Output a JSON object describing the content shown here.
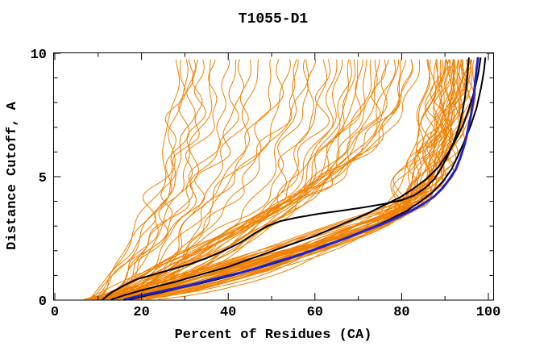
{
  "window": {
    "title": "T1055-D1"
  },
  "chart_data": {
    "type": "line",
    "title": "T1055-D1",
    "xlabel": "Percent of Residues (CA)",
    "ylabel": "Distance Cutoff, A",
    "xlim": [
      0,
      100
    ],
    "ylim": [
      0,
      10
    ],
    "x_tick_step_minor": 10,
    "x_major_ticks": [
      0,
      20,
      40,
      60,
      80,
      100
    ],
    "y_tick_step_minor": 1,
    "y_major_ticks": [
      0,
      5,
      10
    ],
    "grid": false,
    "legend": "none",
    "ticks_inward_mirrored": true,
    "colors": {
      "background": "#FFFFFF",
      "frame": "#000000",
      "text": "#000000",
      "ensemble": "#F08000",
      "reference_black": "#000000",
      "highlight_blue": "#2222CC"
    },
    "highlight_series": [
      {
        "name": "model-black-upper",
        "color": "#000000",
        "width": 2,
        "points": [
          [
            11,
            0.02
          ],
          [
            13,
            0.3
          ],
          [
            16,
            0.6
          ],
          [
            19,
            0.85
          ],
          [
            23,
            1.05
          ],
          [
            27,
            1.25
          ],
          [
            31,
            1.45
          ],
          [
            35,
            1.7
          ],
          [
            39,
            2.0
          ],
          [
            43,
            2.35
          ],
          [
            46,
            2.7
          ],
          [
            49,
            3.0
          ],
          [
            52,
            3.2
          ],
          [
            56,
            3.35
          ],
          [
            61,
            3.5
          ],
          [
            66,
            3.62
          ],
          [
            71,
            3.75
          ],
          [
            76,
            3.9
          ],
          [
            80,
            4.05
          ],
          [
            83,
            4.25
          ],
          [
            85.5,
            4.55
          ],
          [
            87.5,
            4.9
          ],
          [
            89,
            5.3
          ],
          [
            90.5,
            5.8
          ],
          [
            92,
            6.4
          ],
          [
            93.2,
            7.0
          ],
          [
            94,
            7.6
          ],
          [
            94.6,
            8.2
          ],
          [
            95,
            8.8
          ],
          [
            95.3,
            9.4
          ],
          [
            95.5,
            9.8
          ]
        ]
      },
      {
        "name": "model-black-mid",
        "color": "#000000",
        "width": 2,
        "points": [
          [
            13,
            0.02
          ],
          [
            16,
            0.2
          ],
          [
            20,
            0.4
          ],
          [
            24,
            0.58
          ],
          [
            28,
            0.75
          ],
          [
            32,
            0.95
          ],
          [
            36,
            1.15
          ],
          [
            40,
            1.35
          ],
          [
            44,
            1.6
          ],
          [
            48,
            1.85
          ],
          [
            52,
            2.1
          ],
          [
            56,
            2.35
          ],
          [
            60,
            2.6
          ],
          [
            64,
            2.9
          ],
          [
            68,
            3.2
          ],
          [
            72,
            3.5
          ],
          [
            76,
            3.85
          ],
          [
            80,
            4.2
          ],
          [
            83,
            4.55
          ],
          [
            86,
            4.95
          ],
          [
            88.5,
            5.4
          ],
          [
            90.5,
            5.9
          ],
          [
            92.5,
            6.5
          ],
          [
            94.2,
            7.1
          ],
          [
            95.6,
            7.8
          ],
          [
            96.8,
            8.5
          ],
          [
            97.7,
            9.2
          ],
          [
            98.2,
            9.8
          ]
        ]
      },
      {
        "name": "model-black-best",
        "color": "#000000",
        "width": 2,
        "points": [
          [
            17,
            0.02
          ],
          [
            21,
            0.18
          ],
          [
            25,
            0.33
          ],
          [
            29,
            0.5
          ],
          [
            33,
            0.65
          ],
          [
            37,
            0.82
          ],
          [
            41,
            1.0
          ],
          [
            45,
            1.2
          ],
          [
            49,
            1.4
          ],
          [
            53,
            1.62
          ],
          [
            57,
            1.85
          ],
          [
            61,
            2.1
          ],
          [
            65,
            2.35
          ],
          [
            69,
            2.62
          ],
          [
            73,
            2.92
          ],
          [
            77,
            3.25
          ],
          [
            81,
            3.6
          ],
          [
            84,
            3.95
          ],
          [
            87,
            4.35
          ],
          [
            89.5,
            4.8
          ],
          [
            91.5,
            5.3
          ],
          [
            93,
            5.85
          ],
          [
            94.5,
            6.45
          ],
          [
            96,
            7.1
          ],
          [
            97.3,
            7.8
          ],
          [
            98.3,
            8.6
          ],
          [
            99,
            9.3
          ],
          [
            99.3,
            9.8
          ]
        ]
      },
      {
        "name": "model-blue-highlight",
        "color": "#2222CC",
        "width": 3,
        "points": [
          [
            16,
            0.02
          ],
          [
            19,
            0.15
          ],
          [
            23,
            0.3
          ],
          [
            27,
            0.45
          ],
          [
            31,
            0.6
          ],
          [
            35,
            0.78
          ],
          [
            39,
            0.95
          ],
          [
            43,
            1.12
          ],
          [
            47,
            1.32
          ],
          [
            51,
            1.55
          ],
          [
            55,
            1.75
          ],
          [
            59,
            2.0
          ],
          [
            63,
            2.25
          ],
          [
            67,
            2.5
          ],
          [
            71,
            2.78
          ],
          [
            75,
            3.05
          ],
          [
            79,
            3.35
          ],
          [
            82,
            3.6
          ],
          [
            85,
            3.9
          ],
          [
            87.5,
            4.2
          ],
          [
            89.5,
            4.55
          ],
          [
            91,
            4.9
          ],
          [
            92.5,
            5.3
          ],
          [
            93.5,
            5.75
          ],
          [
            94.5,
            6.3
          ],
          [
            95.3,
            6.9
          ],
          [
            96,
            7.5
          ],
          [
            96.6,
            8.2
          ],
          [
            97,
            8.9
          ],
          [
            97.3,
            9.4
          ],
          [
            97.6,
            9.8
          ]
        ]
      }
    ],
    "ensemble_series": {
      "name": "server-models-orange",
      "color": "#F08000",
      "width": 1,
      "count": 84,
      "y_top": 9.85,
      "curve_params_format": [
        "x_at_y0",
        "x_at_knee",
        "y_knee",
        "x_at_top"
      ],
      "curves": [
        [
          6,
          78,
          3.2,
          90
        ],
        [
          8,
          82,
          3.6,
          93
        ],
        [
          10,
          85,
          4.0,
          95
        ],
        [
          12,
          75,
          3.0,
          88
        ],
        [
          7,
          88,
          4.5,
          96
        ],
        [
          14,
          80,
          3.4,
          92
        ],
        [
          9,
          84,
          3.8,
          94
        ],
        [
          16,
          77,
          3.1,
          89
        ],
        [
          11,
          86,
          4.2,
          95
        ],
        [
          13,
          79,
          3.3,
          91
        ],
        [
          5,
          83,
          3.7,
          93
        ],
        [
          15,
          87,
          4.4,
          96
        ],
        [
          8,
          76,
          3.0,
          87
        ],
        [
          10,
          81,
          3.5,
          92
        ],
        [
          17,
          85,
          4.1,
          94
        ],
        [
          12,
          89,
          4.8,
          97
        ],
        [
          6,
          74,
          2.9,
          86
        ],
        [
          9,
          80,
          3.4,
          91
        ],
        [
          14,
          84,
          3.9,
          94
        ],
        [
          18,
          78,
          3.2,
          90
        ],
        [
          7,
          86,
          4.3,
          95
        ],
        [
          11,
          82,
          3.6,
          92
        ],
        [
          15,
          88,
          4.6,
          96
        ],
        [
          13,
          76,
          3.0,
          88
        ],
        [
          5,
          80,
          3.5,
          90
        ],
        [
          16,
          84,
          4.0,
          93
        ],
        [
          9,
          78,
          3.2,
          89
        ],
        [
          12,
          86,
          4.2,
          94
        ],
        [
          19,
          81,
          3.5,
          91
        ],
        [
          7,
          84,
          3.9,
          93
        ],
        [
          10,
          88,
          4.7,
          96
        ],
        [
          14,
          75,
          3.0,
          86
        ],
        [
          17,
          82,
          3.7,
          92
        ],
        [
          6,
          79,
          3.3,
          90
        ],
        [
          11,
          85,
          4.1,
          94
        ],
        [
          20,
          83,
          3.8,
          92
        ],
        [
          8,
          87,
          4.5,
          95
        ],
        [
          13,
          80,
          3.4,
          90
        ],
        [
          15,
          77,
          3.1,
          88
        ],
        [
          9,
          83,
          3.8,
          92
        ],
        [
          10,
          55,
          4.0,
          70
        ],
        [
          12,
          60,
          4.5,
          75
        ],
        [
          8,
          48,
          3.5,
          62
        ],
        [
          15,
          65,
          5.0,
          80
        ],
        [
          11,
          52,
          3.8,
          68
        ],
        [
          18,
          68,
          5.5,
          82
        ],
        [
          9,
          45,
          3.4,
          58
        ],
        [
          13,
          62,
          4.8,
          77
        ],
        [
          16,
          57,
          4.2,
          72
        ],
        [
          7,
          50,
          3.6,
          66
        ],
        [
          14,
          66,
          5.2,
          81
        ],
        [
          10,
          43,
          3.2,
          56
        ],
        [
          12,
          58,
          4.4,
          73
        ],
        [
          17,
          63,
          4.9,
          78
        ],
        [
          8,
          53,
          3.9,
          69
        ],
        [
          15,
          70,
          5.8,
          84
        ],
        [
          11,
          47,
          3.4,
          60
        ],
        [
          13,
          61,
          4.6,
          76
        ],
        [
          19,
          56,
          4.1,
          71
        ],
        [
          9,
          64,
          5.0,
          79
        ],
        [
          16,
          51,
          3.7,
          65
        ],
        [
          12,
          67,
          5.4,
          82
        ],
        [
          10,
          59,
          4.4,
          74
        ],
        [
          14,
          49,
          3.5,
          63
        ],
        [
          11,
          54,
          4.0,
          68
        ],
        [
          8,
          20,
          3.0,
          28
        ],
        [
          10,
          25,
          3.5,
          33
        ],
        [
          12,
          30,
          4.0,
          40
        ],
        [
          9,
          22,
          3.2,
          30
        ],
        [
          14,
          35,
          4.5,
          45
        ],
        [
          11,
          27,
          3.6,
          36
        ],
        [
          16,
          40,
          5.0,
          50
        ],
        [
          10,
          24,
          3.3,
          32
        ],
        [
          13,
          32,
          4.2,
          42
        ],
        [
          18,
          44,
          5.5,
          54
        ],
        [
          9,
          21,
          3.1,
          29
        ],
        [
          15,
          37,
          4.6,
          47
        ],
        [
          12,
          28,
          3.8,
          37
        ],
        [
          20,
          46,
          5.6,
          56
        ],
        [
          11,
          26,
          3.5,
          34
        ],
        [
          17,
          42,
          5.2,
          52
        ],
        [
          13,
          33,
          4.3,
          43
        ],
        [
          8,
          23,
          3.4,
          31
        ],
        [
          22,
          48,
          5.8,
          58
        ]
      ]
    }
  }
}
